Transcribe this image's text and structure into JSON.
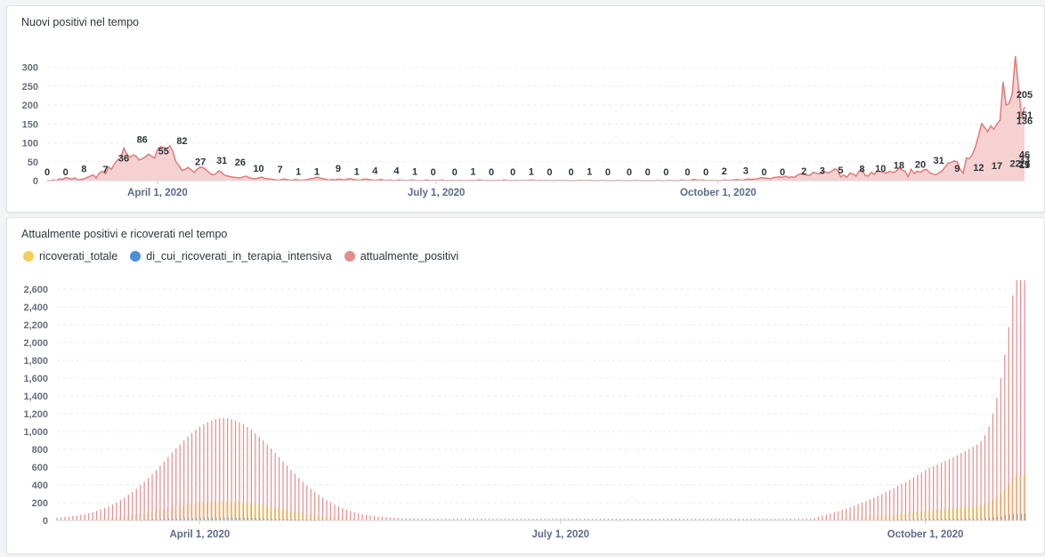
{
  "chart_data": [
    {
      "type": "area",
      "title": "Nuovi positivi nel tempo",
      "ylim": [
        0,
        330
      ],
      "y_ticks": [
        0,
        50,
        100,
        150,
        200,
        250,
        300
      ],
      "x_ticks": [
        "April 1, 2020",
        "July 1, 2020",
        "October 1, 2020"
      ],
      "x_range": [
        "2020-02-25",
        "2020-10-26"
      ],
      "color": "#e07a7a",
      "fill": "#f6d1d1",
      "series": [
        {
          "values": [
            0,
            0,
            2,
            0,
            5,
            3,
            8,
            6,
            4,
            7,
            2,
            3,
            5,
            8,
            12,
            15,
            7,
            20,
            25,
            18,
            36,
            30,
            45,
            55,
            60,
            86,
            70,
            62,
            68,
            65,
            55,
            58,
            62,
            70,
            65,
            60,
            82,
            90,
            88,
            85,
            92,
            78,
            50,
            40,
            27,
            30,
            35,
            28,
            22,
            31,
            36,
            34,
            28,
            20,
            15,
            18,
            26,
            22,
            14,
            12,
            10,
            9,
            8,
            7,
            10,
            12,
            7,
            6,
            5,
            7,
            9,
            6,
            5,
            4,
            3,
            1,
            2,
            4,
            3,
            2,
            1,
            3,
            2,
            1,
            2,
            3,
            5,
            6,
            9,
            7,
            5,
            4,
            1,
            3,
            2,
            4,
            3,
            2,
            4,
            5,
            3,
            2,
            1,
            3,
            4,
            3,
            2,
            1,
            2,
            3,
            1,
            1,
            2,
            0,
            1,
            2,
            1,
            0,
            1,
            2,
            1,
            0,
            0,
            1,
            2,
            0,
            1,
            0,
            1,
            2,
            0,
            0,
            1,
            0,
            0,
            1,
            0,
            0,
            1,
            0,
            1,
            2,
            1,
            0,
            1,
            0,
            0,
            1,
            0,
            2,
            1,
            0,
            0,
            1,
            0,
            1,
            0,
            1,
            2,
            1,
            0,
            1,
            0,
            1,
            0,
            0,
            0,
            1,
            0,
            1,
            0,
            0,
            0,
            0,
            1,
            0,
            0,
            1,
            0,
            0,
            0,
            1,
            0,
            0,
            0,
            0,
            1,
            0,
            0,
            0,
            0,
            0,
            1,
            0,
            0,
            0,
            0,
            0,
            0,
            1,
            0,
            0,
            0,
            1,
            0,
            0,
            0,
            2,
            1,
            0,
            1,
            3,
            2,
            1,
            2,
            0,
            0,
            1,
            0,
            0,
            0,
            2,
            1,
            1,
            2,
            3,
            2,
            1,
            3,
            4,
            3,
            4,
            5,
            8,
            7,
            6,
            5,
            8,
            9,
            10,
            9,
            12,
            8,
            10,
            9,
            15,
            18,
            16,
            15,
            14,
            22,
            20,
            18,
            25,
            23,
            20,
            25,
            31,
            28,
            10,
            15,
            9,
            20,
            18,
            12,
            25,
            28,
            14,
            12,
            22,
            17,
            25,
            24,
            22,
            20,
            25,
            22,
            24,
            33,
            28,
            25,
            10,
            30,
            19,
            25,
            22,
            28,
            30,
            21,
            18,
            15,
            20,
            25,
            35,
            46,
            48,
            52,
            50,
            30,
            20,
            60,
            58,
            70,
            90,
            120,
            151,
            140,
            130,
            145,
            136,
            150,
            160,
            262,
            200,
            205,
            230,
            330,
            250,
            170,
            195
          ]
        }
      ],
      "data_labels": [
        {
          "x": "2020-02-25",
          "y": 0
        },
        {
          "x": "2020-03-02",
          "y": 0
        },
        {
          "x": "2020-03-08",
          "y": 8
        },
        {
          "x": "2020-03-15",
          "y": 7
        },
        {
          "x": "2020-03-21",
          "y": 36
        },
        {
          "x": "2020-03-27",
          "y": 86
        },
        {
          "x": "2020-04-03",
          "y": 55
        },
        {
          "x": "2020-04-09",
          "y": 82
        },
        {
          "x": "2020-04-15",
          "y": 27
        },
        {
          "x": "2020-04-22",
          "y": 31
        },
        {
          "x": "2020-04-28",
          "y": 26
        },
        {
          "x": "2020-05-04",
          "y": 10
        },
        {
          "x": "2020-05-11",
          "y": 7
        },
        {
          "x": "2020-05-17",
          "y": 1
        },
        {
          "x": "2020-05-23",
          "y": 1
        },
        {
          "x": "2020-05-30",
          "y": 9
        },
        {
          "x": "2020-06-05",
          "y": 1
        },
        {
          "x": "2020-06-12",
          "y": 4
        },
        {
          "x": "2020-06-18",
          "y": 4
        },
        {
          "x": "2020-06-24",
          "y": 1
        },
        {
          "x": "2020-07-01",
          "y": 0
        },
        {
          "x": "2020-07-07",
          "y": 0
        },
        {
          "x": "2020-07-13",
          "y": 1
        },
        {
          "x": "2020-07-20",
          "y": 0
        },
        {
          "x": "2020-07-26",
          "y": 0
        },
        {
          "x": "2020-08-01",
          "y": 1
        },
        {
          "x": "2020-08-08",
          "y": 0
        },
        {
          "x": "2020-08-14",
          "y": 0
        },
        {
          "x": "2020-08-20",
          "y": 1
        },
        {
          "x": "2020-08-27",
          "y": 0
        },
        {
          "x": "2020-09-02",
          "y": 0
        },
        {
          "x": "2020-09-08",
          "y": 0
        },
        {
          "x": "2020-09-15",
          "y": 0
        },
        {
          "x": "2020-09-21",
          "y": 0
        },
        {
          "x": "2020-09-28",
          "y": 0
        },
        {
          "x": "2020-10-04",
          "y": 2
        },
        {
          "x": "2020-10-10",
          "y": 3
        },
        {
          "x": "2020-10-16",
          "y": 0
        },
        {
          "x": "2020-10-23",
          "y": 0
        }
      ],
      "data_labels_note": "see labels_list"
    },
    {
      "type": "bar",
      "title": "Attualmente positivi e ricoverati nel tempo",
      "ylim": [
        0,
        2700
      ],
      "y_ticks": [
        0,
        200,
        400,
        600,
        800,
        1000,
        1200,
        1400,
        1600,
        1800,
        2000,
        2200,
        2400,
        2600
      ],
      "x_ticks": [
        "April 1, 2020",
        "July 1, 2020",
        "October 1, 2020"
      ],
      "x_range": [
        "2020-02-25",
        "2020-10-26"
      ],
      "legend_position": "top-left",
      "series": [
        {
          "name": "ricoverati_totale",
          "color": "#f5cf5a"
        },
        {
          "name": "di_cui_ricoverati_in_terapia_intensiva",
          "color": "#4a90d9"
        },
        {
          "name": "attualmente_positivi",
          "color": "#e58c8c"
        }
      ]
    }
  ],
  "labels_list": [
    {
      "d": 0,
      "v": "0"
    },
    {
      "d": 6,
      "v": "0"
    },
    {
      "d": 12,
      "v": "8"
    },
    {
      "d": 19,
      "v": "7"
    },
    {
      "d": 25,
      "v": "36"
    },
    {
      "d": 31,
      "v": "86"
    },
    {
      "d": 38,
      "v": "55"
    },
    {
      "d": 44,
      "v": "82"
    },
    {
      "d": 50,
      "v": "27"
    },
    {
      "d": 57,
      "v": "31"
    },
    {
      "d": 63,
      "v": "26"
    },
    {
      "d": 69,
      "v": "10"
    },
    {
      "d": 76,
      "v": "7"
    },
    {
      "d": 82,
      "v": "1"
    },
    {
      "d": 88,
      "v": "1"
    },
    {
      "d": 95,
      "v": "9"
    },
    {
      "d": 101,
      "v": "1"
    },
    {
      "d": 107,
      "v": "4"
    },
    {
      "d": 114,
      "v": "4"
    },
    {
      "d": 120,
      "v": "1"
    },
    {
      "d": 126,
      "v": "0"
    },
    {
      "d": 133,
      "v": "0"
    },
    {
      "d": 139,
      "v": "1"
    },
    {
      "d": 145,
      "v": "0"
    },
    {
      "d": 152,
      "v": "0"
    },
    {
      "d": 158,
      "v": "1"
    },
    {
      "d": 164,
      "v": "0"
    },
    {
      "d": 171,
      "v": "0"
    },
    {
      "d": 177,
      "v": "1"
    },
    {
      "d": 183,
      "v": "0"
    },
    {
      "d": 190,
      "v": "0"
    },
    {
      "d": 196,
      "v": "0"
    },
    {
      "d": 202,
      "v": "0"
    },
    {
      "d": 209,
      "v": "0"
    },
    {
      "d": 215,
      "v": "0"
    },
    {
      "d": 221,
      "v": "2"
    },
    {
      "d": 228,
      "v": "3"
    },
    {
      "d": 234,
      "v": "0"
    },
    {
      "d": 240,
      "v": "0"
    },
    {
      "d": 247,
      "v": "2"
    },
    {
      "d": 253,
      "v": "3"
    },
    {
      "d": 259,
      "v": "5"
    },
    {
      "d": 266,
      "v": "8"
    },
    {
      "d": 272,
      "v": "10"
    },
    {
      "d": 278,
      "v": "18"
    },
    {
      "d": 285,
      "v": "20"
    },
    {
      "d": 291,
      "v": "31"
    },
    {
      "d": 297,
      "v": "9"
    },
    {
      "d": 304,
      "v": "12"
    },
    {
      "d": 310,
      "v": "17"
    },
    {
      "d": 316,
      "v": "22"
    },
    {
      "d": 323,
      "v": "33"
    },
    {
      "d": 329,
      "v": "19"
    },
    {
      "d": 335,
      "v": "21"
    },
    {
      "d": 342,
      "v": "46"
    },
    {
      "d": 348,
      "v": "19"
    },
    {
      "d": 354,
      "v": "151"
    },
    {
      "d": 361,
      "v": "136"
    },
    {
      "d": 367,
      "v": "205"
    }
  ]
}
